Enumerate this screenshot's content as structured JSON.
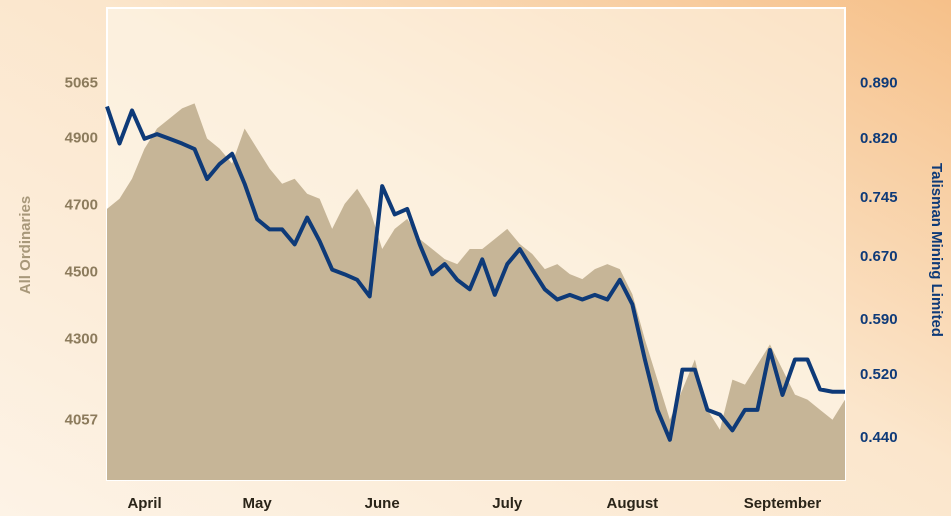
{
  "chart_data": {
    "type": "area-line",
    "categories": [
      null,
      null,
      null,
      "April",
      null,
      null,
      null,
      null,
      null,
      null,
      null,
      null,
      "May",
      null,
      null,
      null,
      null,
      null,
      null,
      null,
      null,
      null,
      "June",
      null,
      null,
      null,
      null,
      null,
      null,
      null,
      null,
      null,
      "July",
      null,
      null,
      null,
      null,
      null,
      null,
      null,
      null,
      null,
      "August",
      null,
      null,
      null,
      null,
      null,
      null,
      null,
      null,
      null,
      null,
      null,
      "September",
      null,
      null,
      null,
      null,
      null
    ],
    "series": [
      {
        "name": "All Ordinaries",
        "color": "#c6b597",
        "kind": "area",
        "axis": "y",
        "values": [
          4690,
          4720,
          4780,
          4870,
          4930,
          4960,
          4990,
          5005,
          4900,
          4870,
          4825,
          4930,
          4870,
          4810,
          4765,
          4780,
          4735,
          4720,
          4630,
          4705,
          4750,
          4690,
          4570,
          4630,
          4660,
          4600,
          4570,
          4540,
          4525,
          4570,
          4570,
          4600,
          4630,
          4585,
          4555,
          4510,
          4525,
          4495,
          4480,
          4510,
          4525,
          4510,
          4435,
          4300,
          4180,
          4060,
          4150,
          4240,
          4090,
          4030,
          4180,
          4165,
          4225,
          4285,
          4210,
          4135,
          4120,
          4090,
          4060,
          4120
        ]
      },
      {
        "name": "Talisman Mining Limited",
        "color": "#0e3a78",
        "kind": "line",
        "axis": "y2",
        "values": [
          0.861,
          0.814,
          0.856,
          0.82,
          0.826,
          0.82,
          0.814,
          0.807,
          0.769,
          0.788,
          0.801,
          0.763,
          0.718,
          0.705,
          0.705,
          0.686,
          0.72,
          0.69,
          0.654,
          0.648,
          0.641,
          0.62,
          0.76,
          0.724,
          0.731,
          0.686,
          0.648,
          0.661,
          0.641,
          0.629,
          0.667,
          0.622,
          0.661,
          0.68,
          0.654,
          0.629,
          0.616,
          0.622,
          0.616,
          0.622,
          0.616,
          0.641,
          0.61,
          0.54,
          0.476,
          0.438,
          0.527,
          0.527,
          0.476,
          0.47,
          0.45,
          0.476,
          0.476,
          0.552,
          0.495,
          0.54,
          0.54,
          0.502,
          0.499,
          0.499
        ]
      }
    ],
    "ylabel": "All Ordinaries",
    "y2label": "Talisman Mining Limited",
    "ylim": [
      3880,
      5290
    ],
    "yticks": [
      4057,
      4300,
      4500,
      4700,
      4900,
      5065
    ],
    "y2lim": [
      0.387,
      0.986
    ],
    "y2ticks": [
      {
        "value": 0.44,
        "label": "0.440"
      },
      {
        "value": 0.52,
        "label": "0.520"
      },
      {
        "value": 0.59,
        "label": "0.590"
      },
      {
        "value": 0.67,
        "label": "0.670"
      },
      {
        "value": 0.745,
        "label": "0.745"
      },
      {
        "value": 0.82,
        "label": "0.820"
      },
      {
        "value": 0.89,
        "label": "0.890"
      }
    ]
  }
}
